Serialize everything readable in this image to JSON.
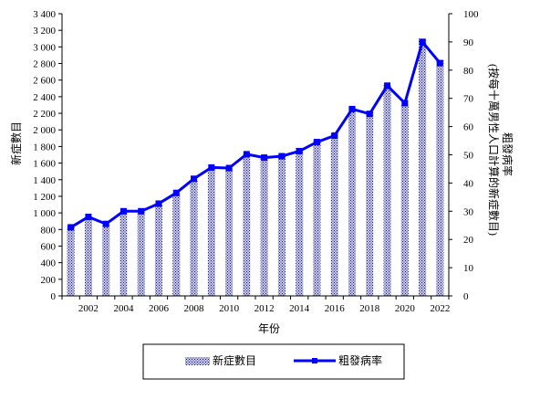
{
  "chart_data": {
    "type": "bar",
    "title": "",
    "xlabel": "年份",
    "ylabel": "新症數目",
    "y2label_line1": "粗發病率",
    "y2label_line2": "(按每十萬男性人口計算的新症數目)",
    "ylim": [
      0,
      3400
    ],
    "y2lim": [
      0,
      100
    ],
    "yticks": [
      "0",
      "200",
      "400",
      "600",
      "800",
      "1 000",
      "1 200",
      "1 400",
      "1 600",
      "1 800",
      "2 000",
      "2 200",
      "2 400",
      "2 600",
      "2 800",
      "3 000",
      "3 200",
      "3 400"
    ],
    "y2ticks": [
      "0",
      "10",
      "20",
      "30",
      "40",
      "50",
      "60",
      "70",
      "80",
      "90",
      "100"
    ],
    "xticks": [
      "2002",
      "2004",
      "2006",
      "2008",
      "2010",
      "2012",
      "2014",
      "2016",
      "2018",
      "2020",
      "2022"
    ],
    "categories": [
      2001,
      2002,
      2003,
      2004,
      2005,
      2006,
      2007,
      2008,
      2009,
      2010,
      2011,
      2012,
      2013,
      2014,
      2015,
      2016,
      2017,
      2018,
      2019,
      2020,
      2021,
      2022
    ],
    "series": [
      {
        "name": "新症數目",
        "axis": "left",
        "values": [
          840,
          935,
          860,
          1010,
          1020,
          1100,
          1230,
          1400,
          1530,
          1540,
          1700,
          1680,
          1700,
          1780,
          1890,
          1960,
          2280,
          2230,
          2540,
          2300,
          3100,
          2840
        ]
      },
      {
        "name": "粗發病率",
        "axis": "right",
        "values": [
          24.3,
          28.0,
          25.5,
          30.0,
          30.0,
          32.7,
          36.5,
          41.5,
          45.5,
          45.3,
          50.2,
          49.0,
          49.5,
          51.3,
          54.5,
          56.8,
          66.2,
          64.5,
          74.5,
          68.3,
          90.0,
          82.5
        ]
      }
    ],
    "colors": {
      "line": "#0000ff",
      "bar_fill": "#c8c8f0",
      "bar_hatch": "#1a1a5a"
    },
    "legend_position": "bottom",
    "grid": false
  }
}
